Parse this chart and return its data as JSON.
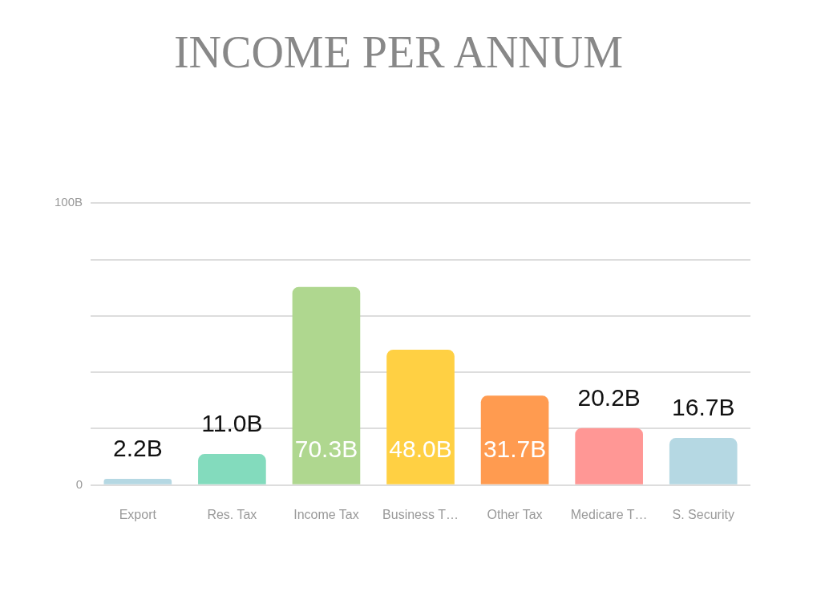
{
  "chart_data": {
    "type": "bar",
    "title": "INCOME PER ANNUM",
    "categories": [
      "Export",
      "Res. Tax",
      "Income Tax",
      "Business T…",
      "Other Tax",
      "Medicare T…",
      "S. Security"
    ],
    "values": [
      2.2,
      11.0,
      70.3,
      48.0,
      31.7,
      20.2,
      16.7
    ],
    "colors": [
      "#b5d8e3",
      "#83dbbd",
      "#afd78f",
      "#ffd043",
      "#ff9b50",
      "#ff9795",
      "#b5d8e3"
    ],
    "value_labels": [
      "2.2B",
      "11.0B",
      "70.3B",
      "48.0B",
      "31.7B",
      "20.2B",
      "16.7B"
    ],
    "ylim": [
      0,
      100
    ],
    "yticks": [
      0,
      {
        "value": 20,
        "label": null
      },
      {
        "value": 40,
        "label": null
      },
      {
        "value": 60,
        "label": null
      },
      {
        "value": 80,
        "label": null
      },
      {
        "value": 100,
        "label": "100B"
      }
    ],
    "grid": "y",
    "legend": false
  }
}
